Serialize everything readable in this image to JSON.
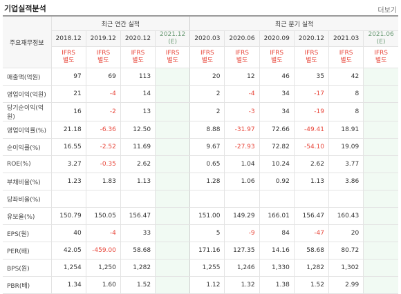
{
  "title": "기업실적분석",
  "more_label": "더보기",
  "row_header_label": "주요재무정보",
  "annual_group_label": "최근 연간 실적",
  "quarter_group_label": "최근 분기 실적",
  "periods": [
    "2018.12",
    "2019.12",
    "2020.12",
    "2021.12\n(E)",
    "2020.03",
    "2020.06",
    "2020.09",
    "2020.12",
    "2021.03",
    "2021.06\n(E)"
  ],
  "ifrs_label": "IFRS\n별도",
  "rows": [
    {
      "label": "매출액(억원)",
      "values": [
        "97",
        "69",
        "113",
        "",
        "20",
        "12",
        "46",
        "35",
        "42",
        ""
      ]
    },
    {
      "label": "영업이익(억원)",
      "values": [
        "21",
        "-4",
        "14",
        "",
        "2",
        "-4",
        "34",
        "-17",
        "8",
        ""
      ]
    },
    {
      "label": "당기순이익(억원)",
      "values": [
        "16",
        "-2",
        "13",
        "",
        "2",
        "-3",
        "34",
        "-19",
        "8",
        ""
      ]
    },
    {
      "label": "영업이익률(%)",
      "values": [
        "21.18",
        "-6.36",
        "12.50",
        "",
        "8.88",
        "-31.97",
        "72.66",
        "-49.41",
        "18.91",
        ""
      ]
    },
    {
      "label": "순이익률(%)",
      "values": [
        "16.55",
        "-2.52",
        "11.69",
        "",
        "9.67",
        "-27.93",
        "72.82",
        "-54.10",
        "19.09",
        ""
      ]
    },
    {
      "label": "ROE(%)",
      "values": [
        "3.27",
        "-0.35",
        "2.62",
        "",
        "0.65",
        "1.04",
        "10.24",
        "2.62",
        "3.77",
        ""
      ]
    },
    {
      "label": "부채비율(%)",
      "values": [
        "1.23",
        "1.83",
        "1.13",
        "",
        "1.28",
        "1.06",
        "0.92",
        "1.13",
        "3.86",
        ""
      ]
    },
    {
      "label": "당좌비율(%)",
      "values": [
        "",
        "",
        "",
        "",
        "",
        "",
        "",
        "",
        "",
        ""
      ]
    },
    {
      "label": "유보율(%)",
      "values": [
        "150.79",
        "150.05",
        "156.47",
        "",
        "151.00",
        "149.29",
        "166.01",
        "156.47",
        "160.43",
        ""
      ]
    },
    {
      "label": "EPS(원)",
      "values": [
        "40",
        "-4",
        "33",
        "",
        "5",
        "-9",
        "84",
        "-47",
        "20",
        ""
      ]
    },
    {
      "label": "PER(배)",
      "values": [
        "42.05",
        "-459.00",
        "58.68",
        "",
        "171.16",
        "127.35",
        "14.16",
        "58.68",
        "80.72",
        ""
      ]
    },
    {
      "label": "BPS(원)",
      "values": [
        "1,254",
        "1,250",
        "1,282",
        "",
        "1,255",
        "1,246",
        "1,330",
        "1,282",
        "1,302",
        ""
      ]
    },
    {
      "label": "PBR(배)",
      "values": [
        "1.34",
        "1.60",
        "1.52",
        "",
        "1.12",
        "1.32",
        "1.38",
        "1.52",
        "2.99",
        ""
      ]
    }
  ],
  "colors": {
    "negative": "#e8463a",
    "estimate_bg": "#f1faf3",
    "ifrs": "#e8463a"
  }
}
